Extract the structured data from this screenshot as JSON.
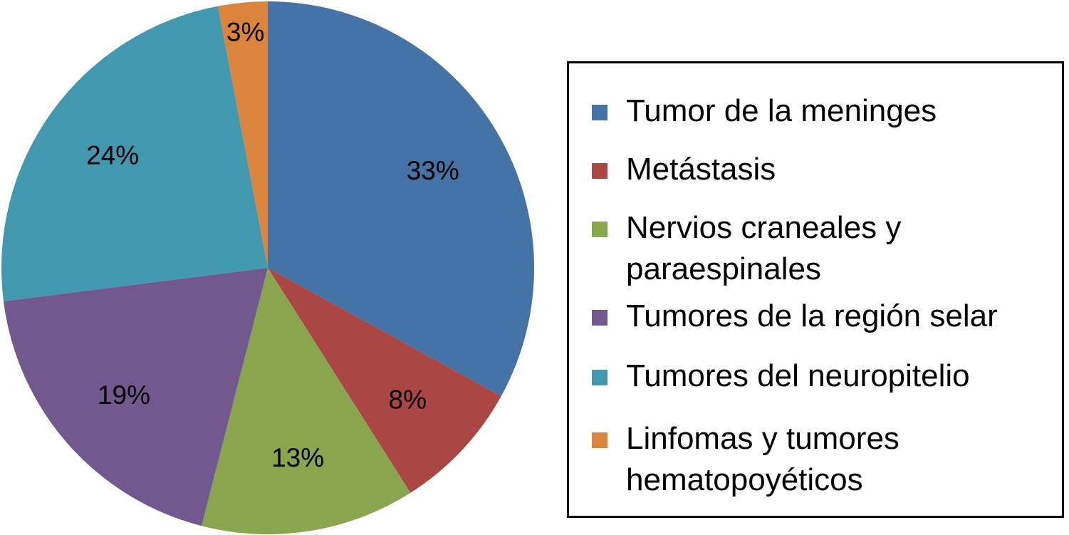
{
  "chart_data": {
    "type": "pie",
    "title": "",
    "slices": [
      {
        "label": "Tumor de la meninges",
        "value": 33,
        "display": "33%",
        "color": "#4572A7"
      },
      {
        "label": "Metástasis",
        "value": 8,
        "display": "8%",
        "color": "#AA4643"
      },
      {
        "label": "Nervios craneales y paraespinales",
        "value": 13,
        "display": "13%",
        "color": "#89A54E"
      },
      {
        "label": "Tumores de la región selar",
        "value": 19,
        "display": "19%",
        "color": "#71588F"
      },
      {
        "label": "Tumores del neuropitelio",
        "value": 24,
        "display": "24%",
        "color": "#4198AF"
      },
      {
        "label": "Linfomas y tumores hematopoyéticos",
        "value": 3,
        "display": "3%",
        "color": "#DB843D"
      }
    ],
    "start_angle": "12 o'clock",
    "direction": "clockwise",
    "legend_position": "right"
  }
}
